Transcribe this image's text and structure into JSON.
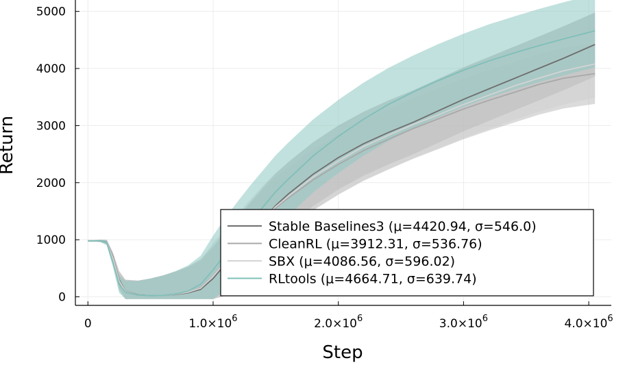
{
  "chart_data": {
    "type": "line",
    "xlabel": "Step",
    "ylabel": "Return",
    "xlim": [
      -100000,
      4180000
    ],
    "ylim": [
      -150,
      5200
    ],
    "grid": true,
    "legend_position": "bottom-right",
    "x_ticks": [
      {
        "value": 0,
        "mantissa": "0",
        "sup": ""
      },
      {
        "value": 1000000,
        "mantissa": "1.0×10",
        "sup": "6"
      },
      {
        "value": 2000000,
        "mantissa": "2.0×10",
        "sup": "6"
      },
      {
        "value": 3000000,
        "mantissa": "3.0×10",
        "sup": "6"
      },
      {
        "value": 4000000,
        "mantissa": "4.0×10",
        "sup": "6"
      }
    ],
    "y_ticks": [
      {
        "value": 0,
        "label": "0"
      },
      {
        "value": 1000,
        "label": "1000"
      },
      {
        "value": 2000,
        "label": "2000"
      },
      {
        "value": 3000,
        "label": "3000"
      },
      {
        "value": 4000,
        "label": "4000"
      },
      {
        "value": 5000,
        "label": "5000"
      }
    ],
    "series": [
      {
        "name": "Stable Baselines3 (μ=4420.94, σ=546.0)",
        "color": "#6e6e6e",
        "band_color": "#8c8c8c",
        "band_opacity": 0.45,
        "x": [
          0,
          100000,
          150000,
          200000,
          250000,
          300000,
          400000,
          500000,
          600000,
          700000,
          800000,
          900000,
          1000000,
          1100000,
          1200000,
          1300000,
          1400000,
          1500000,
          1600000,
          1800000,
          2000000,
          2200000,
          2400000,
          2600000,
          2800000,
          3000000,
          3200000,
          3400000,
          3600000,
          3800000,
          4050000
        ],
        "y": [
          980,
          980,
          960,
          700,
          300,
          100,
          35,
          20,
          25,
          40,
          70,
          130,
          320,
          580,
          840,
          1100,
          1360,
          1600,
          1800,
          2150,
          2440,
          2680,
          2880,
          3060,
          3260,
          3460,
          3640,
          3820,
          4000,
          4180,
          4420
        ],
        "band": [
          0,
          20,
          40,
          80,
          150,
          200,
          250,
          300,
          350,
          400,
          450,
          500,
          550,
          560,
          560,
          560,
          560,
          560,
          560,
          560,
          560,
          560,
          560,
          560,
          560,
          560,
          560,
          560,
          560,
          560,
          560
        ]
      },
      {
        "name": "CleanRL (μ=3912.31, σ=536.76)",
        "color": "#a8a8a8",
        "band_color": "#b0b0b0",
        "band_opacity": 0.45,
        "x": [
          0,
          100000,
          150000,
          200000,
          250000,
          300000,
          400000,
          500000,
          600000,
          700000,
          800000,
          900000,
          1000000,
          1100000,
          1200000,
          1300000,
          1400000,
          1500000,
          1600000,
          1800000,
          2000000,
          2200000,
          2400000,
          2600000,
          2800000,
          3000000,
          3200000,
          3400000,
          3600000,
          3800000,
          4050000
        ],
        "y": [
          980,
          980,
          950,
          650,
          260,
          90,
          30,
          20,
          25,
          45,
          80,
          160,
          370,
          630,
          880,
          1120,
          1350,
          1560,
          1730,
          2050,
          2320,
          2560,
          2760,
          2950,
          3120,
          3290,
          3440,
          3580,
          3720,
          3830,
          3910
        ],
        "band": [
          0,
          20,
          40,
          80,
          150,
          200,
          250,
          300,
          350,
          400,
          450,
          500,
          520,
          530,
          530,
          530,
          530,
          530,
          530,
          530,
          530,
          530,
          530,
          530,
          530,
          530,
          530,
          530,
          530,
          530,
          530
        ]
      },
      {
        "name": "SBX (μ=4086.56, σ=596.02)",
        "color": "#d4d4d4",
        "band_color": "#d0d0d0",
        "band_opacity": 0.5,
        "x": [
          0,
          100000,
          150000,
          200000,
          250000,
          300000,
          400000,
          500000,
          600000,
          700000,
          800000,
          900000,
          1000000,
          1100000,
          1200000,
          1300000,
          1400000,
          1500000,
          1600000,
          1800000,
          2000000,
          2200000,
          2400000,
          2600000,
          2800000,
          3000000,
          3200000,
          3400000,
          3600000,
          3800000,
          4050000
        ],
        "y": [
          980,
          980,
          955,
          680,
          280,
          95,
          30,
          20,
          25,
          45,
          80,
          150,
          360,
          620,
          870,
          1120,
          1360,
          1580,
          1760,
          2100,
          2380,
          2630,
          2830,
          3020,
          3190,
          3370,
          3530,
          3690,
          3830,
          3960,
          4080
        ],
        "band": [
          0,
          20,
          40,
          80,
          150,
          200,
          250,
          300,
          350,
          400,
          450,
          500,
          580,
          590,
          590,
          590,
          590,
          590,
          590,
          590,
          590,
          590,
          590,
          590,
          590,
          590,
          590,
          590,
          590,
          590,
          590
        ]
      },
      {
        "name": "RLtools (μ=4664.71, σ=639.74)",
        "color": "#7fbfb8",
        "band_color": "#8ec9c3",
        "band_opacity": 0.55,
        "x": [
          0,
          100000,
          150000,
          200000,
          250000,
          300000,
          400000,
          500000,
          600000,
          700000,
          800000,
          900000,
          1000000,
          1100000,
          1200000,
          1300000,
          1400000,
          1500000,
          1600000,
          1800000,
          2000000,
          2200000,
          2400000,
          2600000,
          2800000,
          3000000,
          3200000,
          3400000,
          3600000,
          3800000,
          4050000
        ],
        "y": [
          980,
          980,
          950,
          600,
          220,
          80,
          30,
          20,
          25,
          50,
          100,
          220,
          470,
          760,
          1040,
          1320,
          1580,
          1840,
          2060,
          2470,
          2810,
          3110,
          3370,
          3590,
          3790,
          3970,
          4130,
          4270,
          4400,
          4520,
          4660
        ],
        "band": [
          0,
          20,
          40,
          80,
          150,
          200,
          250,
          300,
          350,
          400,
          450,
          500,
          600,
          630,
          640,
          640,
          640,
          640,
          640,
          640,
          640,
          640,
          640,
          640,
          640,
          640,
          640,
          640,
          640,
          640,
          640
        ]
      }
    ]
  }
}
